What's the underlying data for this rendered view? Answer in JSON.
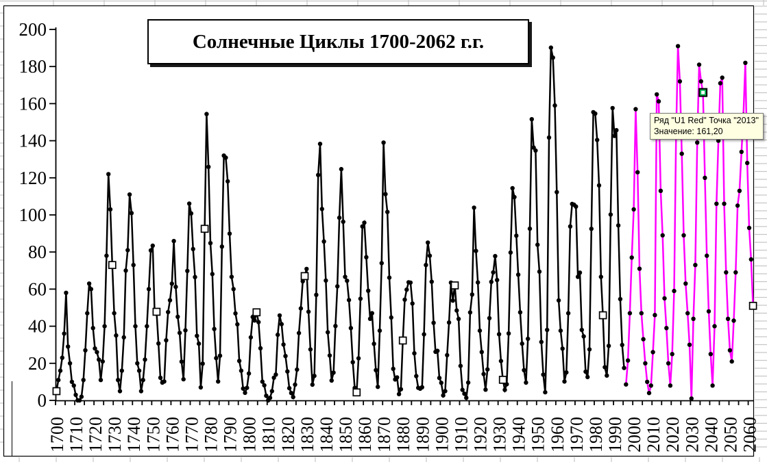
{
  "window": {
    "background": "#ffffff"
  },
  "worksheet": {
    "gridline_color": "#c6c6c6"
  },
  "chart": {
    "border_color": "#000000",
    "title": "Солнечные Циклы 1700-2062 г.г.",
    "tooltip": {
      "line1": "Ряд \"U1 Red\" Точка \"2013\"",
      "line2": "Значение: 161,20",
      "background": "#ffffe1"
    }
  },
  "chart_data": {
    "type": "line",
    "title": "Солнечные Циклы 1700-2062 г.г.",
    "xlabel": "",
    "ylabel": "",
    "ylim": [
      0,
      200
    ],
    "ytick_step": 20,
    "y_axis_labels": [
      "0",
      "20",
      "40",
      "60",
      "80",
      "100",
      "120",
      "140",
      "160",
      "180",
      "200"
    ],
    "x_range": [
      1700,
      2062
    ],
    "x_minor_tick_step_years": 5,
    "x_axis_labels": [
      "1700",
      "1710",
      "1720",
      "1730",
      "1740",
      "1750",
      "1760",
      "1770",
      "1780",
      "1790",
      "1800",
      "1810",
      "1820",
      "1830",
      "1840",
      "1850",
      "1860",
      "1870",
      "1880",
      "1890",
      "1900",
      "1910",
      "1920",
      "1930",
      "1940",
      "1950",
      "1960",
      "1970",
      "1980",
      "1990",
      "2000",
      "2010",
      "2020",
      "2030",
      "2040",
      "2050",
      "2060"
    ],
    "grid": false,
    "legend": "none",
    "series": [
      {
        "name": "",
        "id": "observed-black",
        "color": "#000000",
        "marker": "dot",
        "start_year": 1700,
        "end_year": 1995,
        "values": [
          5,
          11,
          16,
          23,
          36,
          58,
          29,
          20,
          10,
          8,
          3,
          0,
          0,
          2,
          11,
          27,
          47,
          63,
          60,
          39,
          28,
          26,
          22,
          11,
          21,
          40,
          78,
          122,
          103,
          73,
          47,
          35,
          11,
          5,
          16,
          34,
          70,
          81,
          111,
          101,
          73,
          40,
          20,
          16,
          5,
          11,
          22,
          40,
          60,
          80.9,
          83.4,
          47.7,
          47.8,
          30.7,
          12.2,
          9.6,
          10.2,
          32.4,
          47.6,
          54,
          62.9,
          85.9,
          61.2,
          45.1,
          36.4,
          20.9,
          11.4,
          37.8,
          69.8,
          106.1,
          100.8,
          81.6,
          66.5,
          34.8,
          30.6,
          7,
          19.8,
          92.5,
          154.4,
          125.9,
          84.8,
          68.1,
          38.5,
          22.8,
          10.2,
          24.1,
          82.9,
          132,
          130.9,
          118.1,
          89.9,
          66.6,
          60,
          46.9,
          41,
          21.3,
          16,
          6.4,
          4.1,
          6.8,
          14.5,
          34,
          45,
          43.1,
          47.5,
          42.2,
          28.1,
          10.1,
          8.1,
          2.5,
          0,
          1.4,
          5,
          12.2,
          13.9,
          35.4,
          45.8,
          41.1,
          30.1,
          23.9,
          15.6,
          6.6,
          4,
          1.8,
          8.5,
          16.6,
          36.3,
          49.6,
          64.2,
          67,
          70.9,
          47.8,
          27.5,
          8.5,
          13.2,
          56.9,
          121.5,
          138.3,
          103.2,
          85.7,
          64.6,
          36.7,
          24.2,
          10.7,
          15,
          40.1,
          61.5,
          98.5,
          124.7,
          96.3,
          66.6,
          64.5,
          54.1,
          39,
          20.6,
          6.7,
          4.3,
          22.7,
          54.8,
          93.8,
          95.8,
          77.2,
          59.1,
          44,
          47,
          30.5,
          16.3,
          7.3,
          37.6,
          74,
          139,
          111.2,
          101.6,
          66.2,
          44.7,
          17,
          11.3,
          12.4,
          3.4,
          6,
          32.3,
          54.3,
          59.7,
          63.7,
          63.5,
          52.2,
          25.4,
          13.1,
          6.8,
          6.3,
          7.1,
          35.6,
          73,
          85.1,
          78,
          64,
          41.8,
          26.2,
          26.7,
          12.1,
          9.5,
          2.7,
          5,
          24.4,
          42,
          63.5,
          53.8,
          62,
          48.5,
          43.9,
          18.6,
          5.7,
          3.6,
          1.4,
          9.6,
          47.4,
          57.1,
          103.9,
          80.6,
          63.6,
          37.6,
          26.1,
          14.2,
          5.8,
          16.7,
          44.3,
          63.9,
          69,
          77.8,
          64.9,
          35.7,
          21.2,
          11.1,
          5.7,
          8.7,
          36.1,
          79.7,
          114.4,
          109.6,
          88.8,
          67.8,
          47.5,
          30.6,
          16.3,
          9.6,
          33.2,
          92.6,
          151.6,
          136.3,
          134.7,
          83.9,
          69.4,
          31.5,
          13.9,
          4.4,
          38,
          141.7,
          190.2,
          184.8,
          159,
          112.3,
          53.9,
          37.6,
          27.9,
          10.2,
          15.1,
          47,
          93.8,
          105.9,
          105.5,
          104.5,
          66.6,
          68.9,
          38,
          34.5,
          15.5,
          12.6,
          27.5,
          92.5,
          155.4,
          154.6,
          140.4,
          115.9,
          66.6,
          45.9,
          17.9,
          13.4,
          29.4,
          100.2,
          157.6,
          142.6,
          145.7,
          94.3,
          54.6,
          29.9,
          17.5
        ]
      },
      {
        "name": "U1 Red",
        "id": "u1-red-forecast",
        "color": "#ff00ff",
        "marker": "dot",
        "start_year": 1996,
        "end_year": 2062,
        "values": [
          8.6,
          21.5,
          47,
          77,
          103,
          157,
          123,
          71,
          47,
          33,
          20,
          10,
          4,
          8,
          26,
          46,
          165,
          161.2,
          113,
          89,
          55,
          39,
          20,
          8,
          25,
          59,
          142,
          191,
          172,
          133,
          89,
          63,
          47,
          30,
          1,
          44,
          73,
          139,
          181,
          172,
          166,
          120,
          78,
          48,
          25,
          8,
          40,
          106,
          140,
          171,
          174,
          106,
          69,
          44,
          27,
          21,
          43,
          69,
          105,
          113,
          134,
          154,
          182,
          128,
          93,
          76,
          51
        ]
      }
    ],
    "square_marked_years": {
      "observed-black": [
        1700,
        1729,
        1752,
        1777,
        1804,
        1829,
        1856,
        1880,
        1907,
        1932,
        1984
      ],
      "u1-red-forecast": [
        2062
      ]
    },
    "selected_point": {
      "series": "U1 Red",
      "year": 2036,
      "value": 166,
      "highlight_color": "#00b050"
    },
    "hovered_point": {
      "series": "U1 Red",
      "year": 2013,
      "value_text": "161,20"
    }
  }
}
